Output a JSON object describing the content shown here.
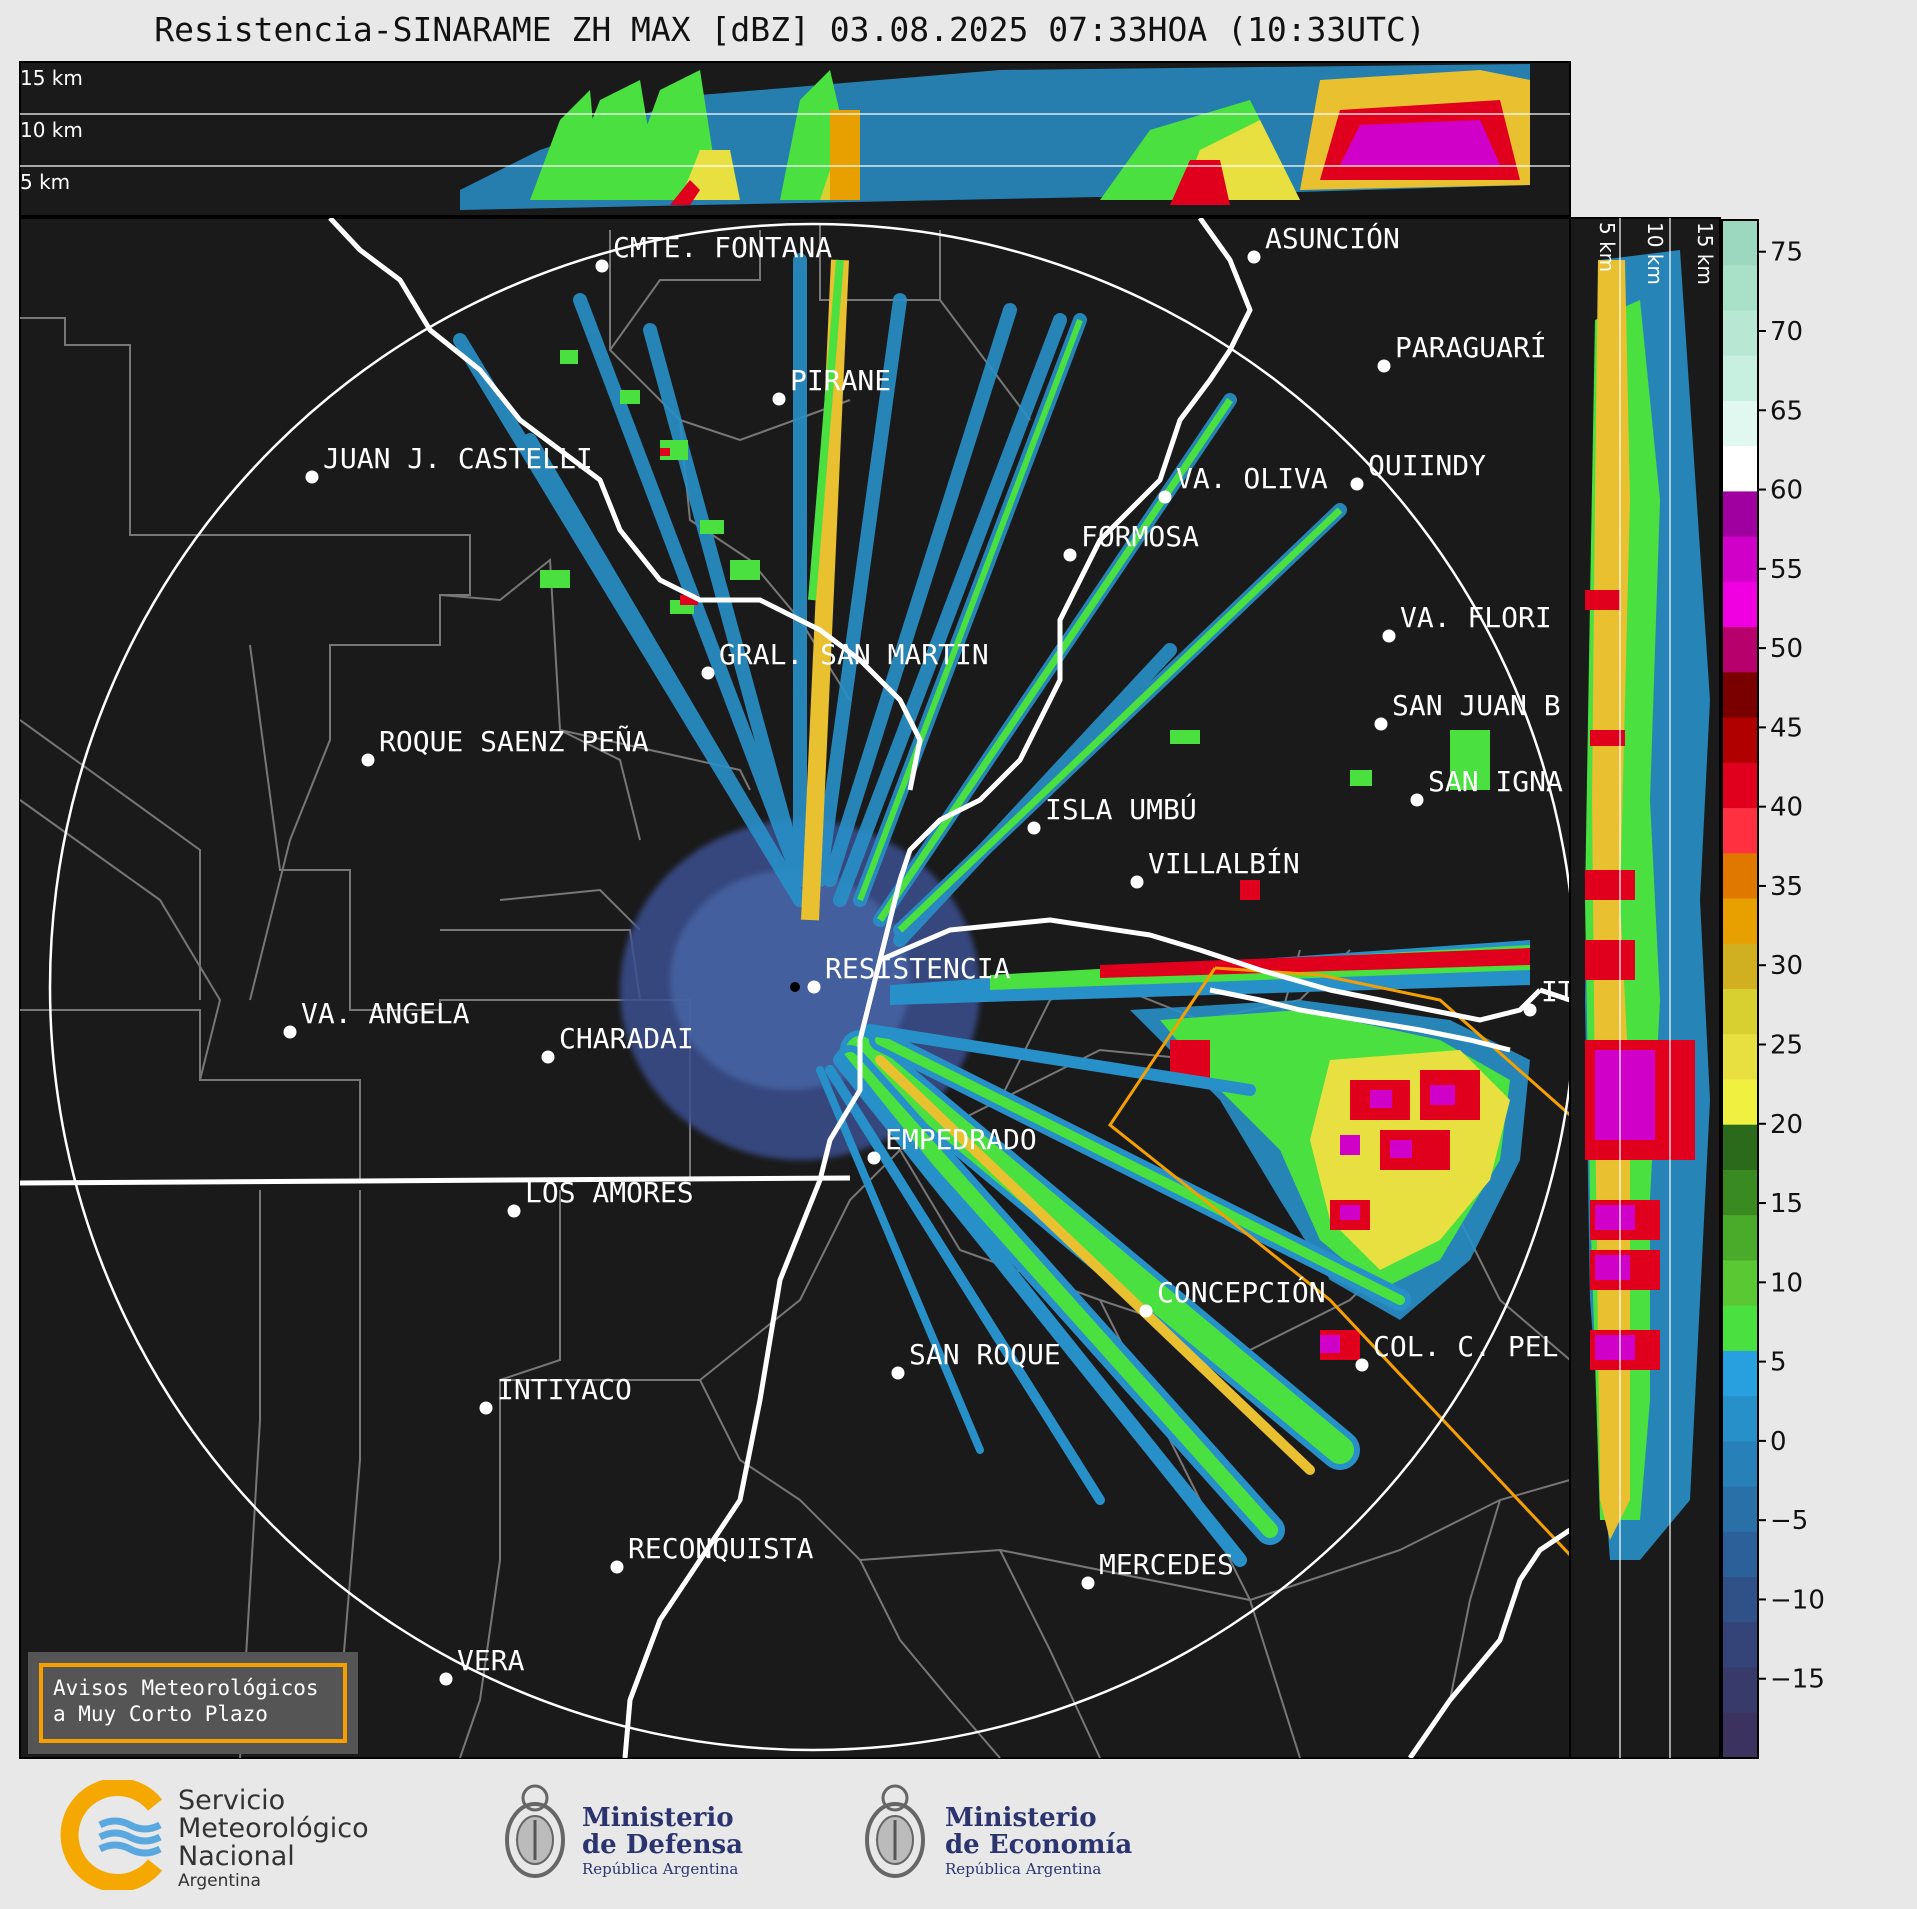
{
  "title": "Resistencia-SINARAME ZH MAX [dBZ] 03.08.2025 07:33HOA (10:33UTC)",
  "height_labels_top": [
    "15 km",
    "10 km",
    "5 km"
  ],
  "height_labels_side": [
    "5 km",
    "10 km",
    "15 km"
  ],
  "colorbar": {
    "ticks": [
      "75",
      "70",
      "65",
      "60",
      "55",
      "50",
      "45",
      "40",
      "35",
      "30",
      "25",
      "20",
      "15",
      "10",
      "5",
      "0",
      "−5",
      "−10",
      "−15"
    ],
    "colors_top_to_bottom": [
      "#9cd8c0",
      "#a8e0c8",
      "#b8e8d4",
      "#c8f0e0",
      "#e0f8f0",
      "#ffffff",
      "#a000a0",
      "#d000c8",
      "#f000e0",
      "#b8006c",
      "#7a0000",
      "#b00000",
      "#e0001e",
      "#ff3040",
      "#e07800",
      "#e8a000",
      "#d0b020",
      "#d8d030",
      "#e8e040",
      "#f0f040",
      "#2a6a1a",
      "#3a8a22",
      "#4aaa2a",
      "#5ac832",
      "#4ae040",
      "#28a0e0",
      "#2890c8",
      "#2880b8",
      "#2a70a8",
      "#2c6098",
      "#305088",
      "#344478",
      "#383a6a",
      "#3c3260"
    ]
  },
  "cities": [
    {
      "name": "CMTE. FONTANA"
    },
    {
      "name": "ASUNCIÓN"
    },
    {
      "name": "PARAGUARÍ"
    },
    {
      "name": "PIRANE"
    },
    {
      "name": "JUAN J. CASTELLI"
    },
    {
      "name": "VA. OLIVA"
    },
    {
      "name": "QUIINDY"
    },
    {
      "name": "FORMOSA"
    },
    {
      "name": "VA. FLORI"
    },
    {
      "name": "GRAL. SAN MARTIN"
    },
    {
      "name": "SAN JUAN B"
    },
    {
      "name": "ROQUE SAENZ PEÑA"
    },
    {
      "name": "SAN IGNA"
    },
    {
      "name": "ISLA UMBÚ"
    },
    {
      "name": "VILLALBÍN"
    },
    {
      "name": "RESISTENCIA"
    },
    {
      "name": "VA. ANGELA"
    },
    {
      "name": "CHARADAI"
    },
    {
      "name": "IT"
    },
    {
      "name": "EMPEDRADO"
    },
    {
      "name": "LOS AMORES"
    },
    {
      "name": "CONCEPCIÓN"
    },
    {
      "name": "COL. C. PEL"
    },
    {
      "name": "SAN ROQUE"
    },
    {
      "name": "INTIYACO"
    },
    {
      "name": "RECONQUISTA"
    },
    {
      "name": "MERCEDES"
    },
    {
      "name": "VERA"
    }
  ],
  "avisos": {
    "line1": "Avisos Meteorológicos",
    "line2": "a Muy Corto Plazo"
  },
  "logos": {
    "smn": {
      "line1": "Servicio",
      "line2": "Meteorológico",
      "line3": "Nacional",
      "line4": "Argentina"
    },
    "defensa": {
      "line1": "Ministerio",
      "line2": "de Defensa",
      "line3": "República Argentina"
    },
    "economia": {
      "line1": "Ministerio",
      "line2": "de Economía",
      "line3": "República Argentina"
    }
  }
}
